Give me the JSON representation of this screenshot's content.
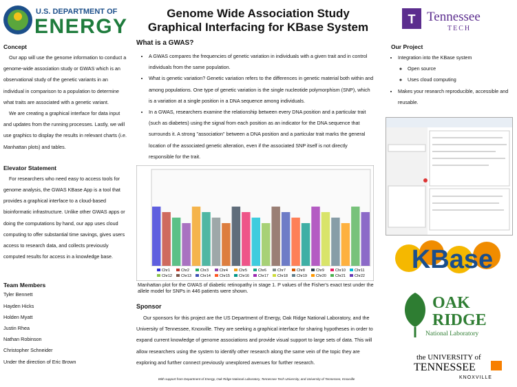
{
  "header": {
    "doe_line1": "U.S. DEPARTMENT OF",
    "doe_line2": "ENERGY",
    "title_line1": "Genome Wide Association Study",
    "title_line2": "Graphical Interfacing for KBase System",
    "ttu_line1": "Tennessee",
    "ttu_line2": "TECH"
  },
  "concept": {
    "heading": "Concept",
    "paragraphs": [
      "Our app will use the genome information to conduct a genome-wide association study or GWAS which is an observational study of the genetic variants in an individual in comparison to a population to determine what traits are associated with a genetic variant.",
      "We are creating a graphical interface for data input and updates from the running processes. Lastly, we will use graphics to display the results in relevant charts (i.e. Manhattan plots) and tables."
    ]
  },
  "elevator": {
    "heading": "Elevator Statement",
    "text": "For researchers who need easy to access tools for genome analysis, the GWAS KBase App is a tool that provides a graphical interface to a cloud-based bioinformatic infrastructure. Unlike other GWAS apps or doing the computations by hand, our app uses cloud computing to offer substantial time savings, gives users access to research data, and collects previously computed results for access in a knowledge base."
  },
  "team": {
    "heading": "Team Members",
    "members": [
      "Tyler Bennett",
      "Hayden Hicks",
      "Holden Myatt",
      "Justin Rhea",
      "Nathan Robinson",
      "Christopher Schneider",
      "Under the direction of Eric Brown"
    ]
  },
  "gwas": {
    "heading": "What is a GWAS?",
    "bullets": [
      "A GWAS compares the frequencies of genetic variation in individuals with a given trait and in control individuals from the same population.",
      "What is genetic variation? Genetic variation refers to the differences in genetic material both within and among populations. One type of genetic variation is the single nucleotide polymorphism (SNP), which is a variation at a single position in a DNA sequence among individuals.",
      "In a GWAS, researchers examine the relationship between every DNA position and a particular trait (such as diabetes) using the signal from each position as an indicator for the DNA sequence that surrounds it. A strong \"association\" between a DNA position and a particular trait marks the general location of the associated genetic alteration, even if the associated SNP itself is not directly responsible for the trait."
    ]
  },
  "figure": {
    "caption": "Manhattan plot for the GWAS of diabetic retinopathy in stage 1. P values of the Fisher's exact test under the allele model for SNPs in 446 patients were shown.",
    "legend": [
      "Chr1",
      "Chr2",
      "Chr3",
      "Chr4",
      "Chr5",
      "Chr6",
      "Chr7",
      "Chr8",
      "Chr9",
      "Chr10",
      "Chr11",
      "Chr12",
      "Chr13",
      "Chr14",
      "Chr15",
      "Chr16",
      "Chr17",
      "Chr18",
      "Chr19",
      "Chr20",
      "Chr21",
      "Chr22"
    ]
  },
  "sponsor": {
    "heading": "Sponsor",
    "text": "Our sponsors for this project are the US Department of Energy, Oak Ridge National Laboratory, and the University of Tennessee, Knoxville. They are seeking a graphical interface for sharing hypotheses in order to expand current knowledge of genome associations and provide visual support to large sets of data. This will allow researchers using the system to identify other research along the same vein of the topic they are exploring and further connect previously unexplored avenues for further research."
  },
  "footer": "With support from Department of Energy, Oak Ridge National Laboratory, Tennessee Tech University, and University of Tennessee, Knoxville",
  "project": {
    "heading": "Our Project",
    "bullets": [
      {
        "text": "Integration into the KBase system",
        "sub": [
          "Open source",
          "Uses cloud computing"
        ]
      },
      {
        "text": "Makes your research reproducible, accessible and reusable.",
        "sub": []
      }
    ]
  },
  "logos": {
    "kbase": "KBase",
    "ornl_line1": "OAK",
    "ornl_line2": "RIDGE",
    "ornl_line3": "National Laboratory",
    "ut_line1": "the UNIVERSITY of",
    "ut_line2": "TENNESSEE",
    "ut_line3": "KNOXVILLE"
  }
}
